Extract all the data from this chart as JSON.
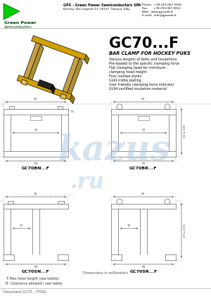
{
  "title": "GC70...F",
  "subtitle": "BAR CLAMP FOR HOCKEY PUKS",
  "features": [
    "Various lenghts of bolts and insulations",
    "Pre-loaded to the specific clamping force",
    "Flat clamping head for minimum",
    "clamping head height",
    "Four clampe styles",
    "Gold iridite plating",
    "User friendly clamping force indicator",
    "UL94 certified insulation material"
  ],
  "company_name": "GPS - Green Power Semicond...",
  "company_name_full": "GPS - Green Power Semiconductors SPA",
  "company_addr": "Factory: Via Linguetti 13, 16137  Genova, Italy",
  "phone": "Phone:  +39-010-067 0000",
  "fax": "Fax:      +39-010-067 0012",
  "web": "Web:  www.gpsweb.it",
  "email": "E-mail:  info@gpsweb.it",
  "logo_text": "Green Power",
  "logo_sub": "Semiconductors",
  "dim_note": "Dimensions in millimeters",
  "footnote_a": "T: Max total height (see tables)",
  "footnote_b": "B: Clearance allowed ( see table)",
  "document": "Document GC70 ...FT001",
  "bg_color": "#ffffff",
  "text_color": "#000000",
  "logo_green": "#00cc00",
  "gold_face": "#d4a000",
  "gold_dark": "#a07800",
  "gold_rod": "#c8a040",
  "diagram_lc": "#666666",
  "dim_color": "#444444",
  "watermark_color": "#aac8e0",
  "label_BN": "GC70BN...F",
  "label_BR": "GC70BR...F",
  "label_SN": "GC70SN...F",
  "label_SR": "GC70SR...F"
}
